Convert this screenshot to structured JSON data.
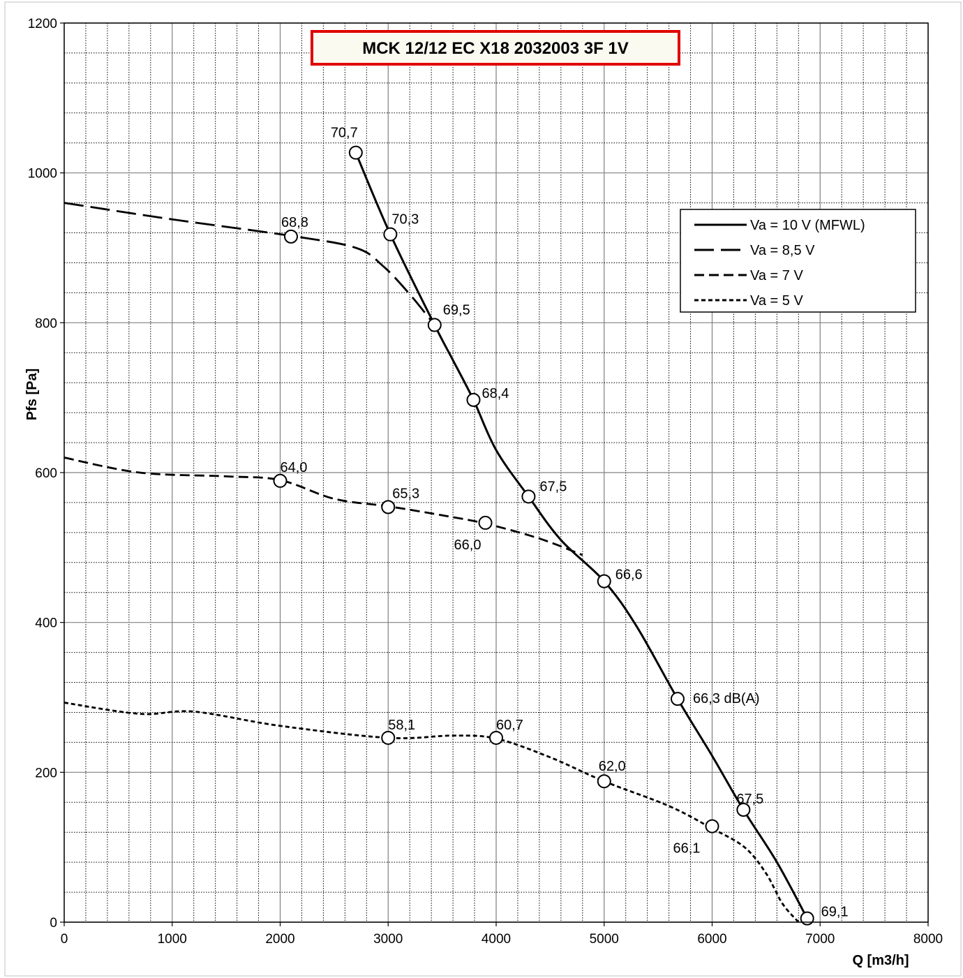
{
  "chart_data": {
    "type": "line",
    "title": "MCK 12/12 EC X18 2032003 3F 1V",
    "xlabel": "Q [m3/h]",
    "ylabel": "Pfs [Pa]",
    "xlim": [
      0,
      8000
    ],
    "ylim": [
      0,
      1200
    ],
    "x_ticks": [
      0,
      1000,
      2000,
      3000,
      4000,
      5000,
      6000,
      7000,
      8000
    ],
    "y_ticks": [
      0,
      200,
      400,
      600,
      800,
      1000,
      1200
    ],
    "grid": true,
    "legend_position": "top-right",
    "colors": {
      "line": "#000000",
      "title_border": "#e00000",
      "title_bg": "#fafaf0",
      "grid_major": "#808080",
      "grid_minor": "#000000"
    },
    "series": [
      {
        "name": "Va = 10 V (MFWL)",
        "dash": "solid",
        "curve": [
          [
            2700,
            1027
          ],
          [
            3020,
            918
          ],
          [
            3430,
            797
          ],
          [
            3600,
            750
          ],
          [
            3790,
            697
          ],
          [
            4000,
            630
          ],
          [
            4300,
            568
          ],
          [
            4600,
            510
          ],
          [
            5000,
            455
          ],
          [
            5300,
            395
          ],
          [
            5680,
            298
          ],
          [
            6000,
            222
          ],
          [
            6290,
            150
          ],
          [
            6600,
            80
          ],
          [
            6880,
            5
          ]
        ],
        "points": [
          {
            "x": 2700,
            "y": 1027,
            "label": "70,7"
          },
          {
            "x": 3020,
            "y": 918,
            "label": "70,3"
          },
          {
            "x": 3430,
            "y": 797,
            "label": "69,5"
          },
          {
            "x": 3790,
            "y": 697,
            "label": "68,4"
          },
          {
            "x": 4300,
            "y": 568,
            "label": "67,5"
          },
          {
            "x": 5000,
            "y": 455,
            "label": "66,6"
          },
          {
            "x": 5680,
            "y": 298,
            "label": "66,3 dB(A)"
          },
          {
            "x": 6290,
            "y": 150,
            "label": "67,5"
          },
          {
            "x": 6880,
            "y": 5,
            "label": "69,1"
          }
        ]
      },
      {
        "name": "Va = 8,5 V",
        "dash": "long-dash",
        "curve": [
          [
            0,
            960
          ],
          [
            1000,
            938
          ],
          [
            2100,
            916
          ],
          [
            2700,
            900
          ],
          [
            2950,
            876
          ],
          [
            3200,
            838
          ],
          [
            3430,
            797
          ]
        ],
        "points": [
          {
            "x": 2100,
            "y": 915,
            "label": "68,8"
          }
        ]
      },
      {
        "name": "Va = 7 V",
        "dash": "medium-dash",
        "curve": [
          [
            0,
            620
          ],
          [
            700,
            600
          ],
          [
            1500,
            595
          ],
          [
            2000,
            590
          ],
          [
            2500,
            565
          ],
          [
            3000,
            555
          ],
          [
            3500,
            543
          ],
          [
            3900,
            532
          ],
          [
            4400,
            512
          ],
          [
            4800,
            490
          ]
        ],
        "points": [
          {
            "x": 2000,
            "y": 589,
            "label": "64,0"
          },
          {
            "x": 3000,
            "y": 554,
            "label": "65,3"
          },
          {
            "x": 3900,
            "y": 533,
            "label": "66,0"
          }
        ]
      },
      {
        "name": "Va = 5 V",
        "dash": "short-dash",
        "curve": [
          [
            0,
            293
          ],
          [
            700,
            278
          ],
          [
            1200,
            281
          ],
          [
            2000,
            262
          ],
          [
            3000,
            246
          ],
          [
            3600,
            249
          ],
          [
            4000,
            245
          ],
          [
            4500,
            220
          ],
          [
            5000,
            188
          ],
          [
            5600,
            155
          ],
          [
            6000,
            125
          ],
          [
            6300,
            100
          ],
          [
            6500,
            65
          ],
          [
            6650,
            25
          ],
          [
            6800,
            0
          ]
        ],
        "points": [
          {
            "x": 3000,
            "y": 246,
            "label": "58,1"
          },
          {
            "x": 4000,
            "y": 246,
            "label": "60,7"
          },
          {
            "x": 5000,
            "y": 188,
            "label": "62,0"
          },
          {
            "x": 6000,
            "y": 128,
            "label": "66,1"
          }
        ]
      }
    ]
  }
}
